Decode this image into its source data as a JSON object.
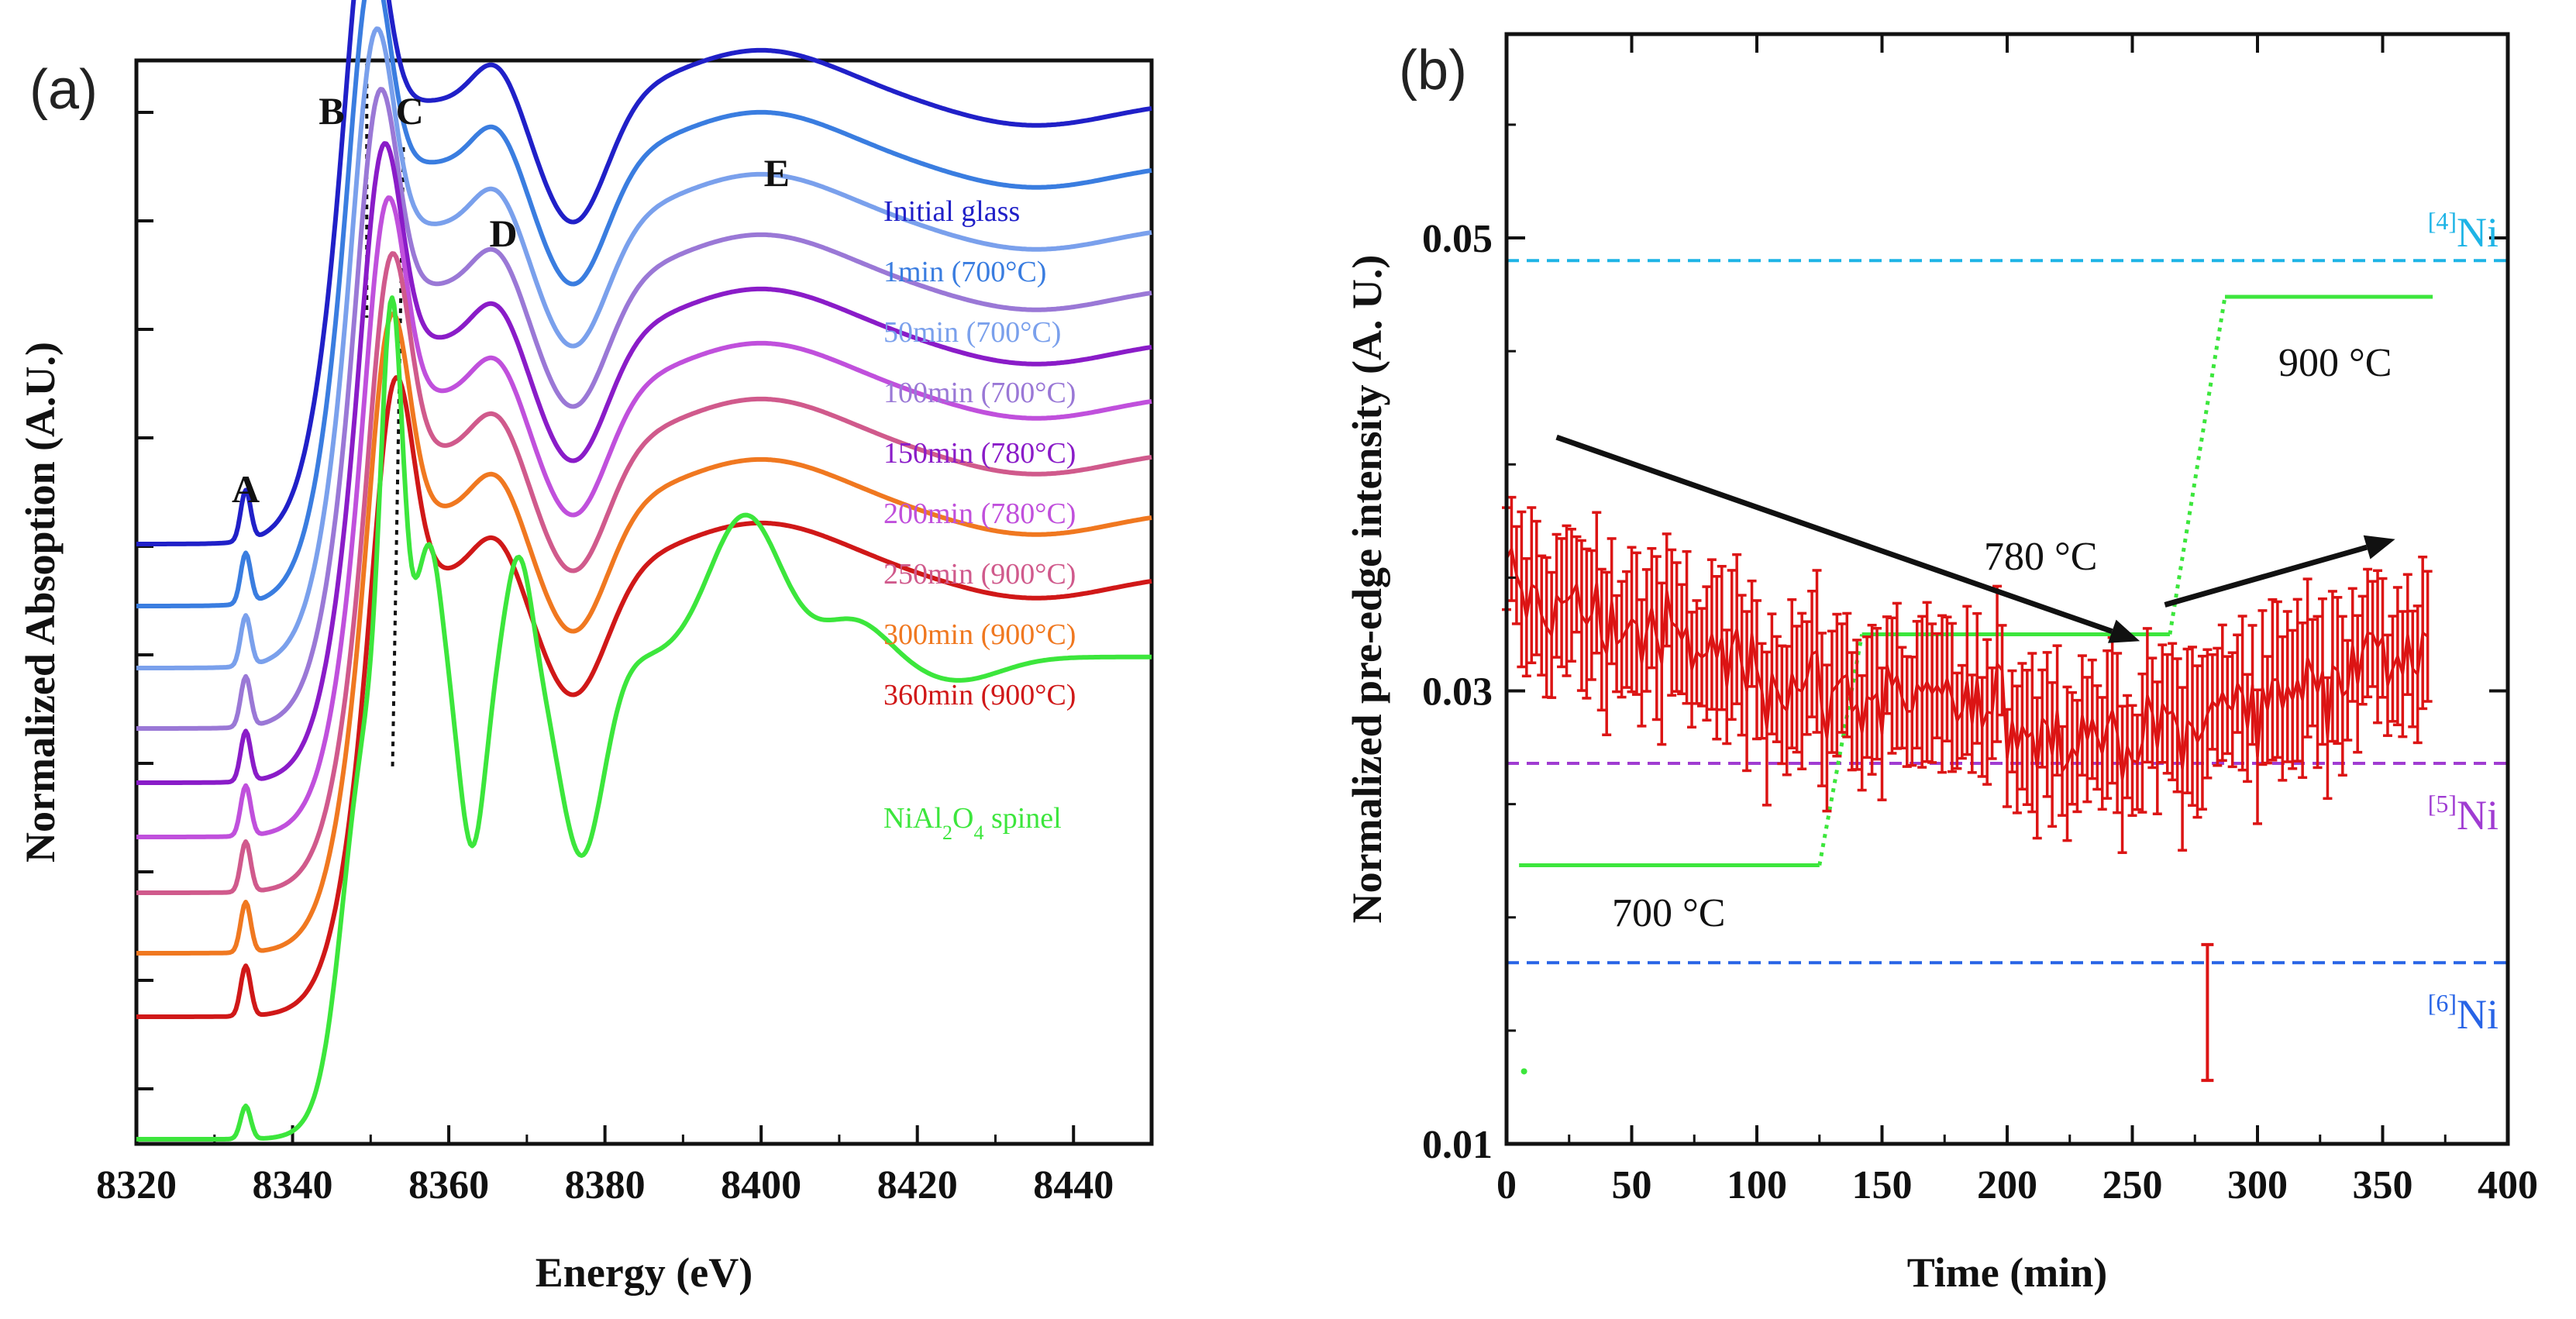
{
  "chart_data": [
    {
      "panel": "(a)",
      "type": "line",
      "xlabel": "Energy (eV)",
      "ylabel": "Normalized Absoption (A.U.)",
      "xlim": [
        8320,
        8450
      ],
      "x_ticks": [
        8320,
        8340,
        8360,
        8380,
        8400,
        8420,
        8440
      ],
      "peak_labels": [
        {
          "label": "A",
          "x": 8334
        },
        {
          "label": "B",
          "x": 8345
        },
        {
          "label": "C",
          "x": 8355
        },
        {
          "label": "D",
          "x": 8367
        },
        {
          "label": "E",
          "x": 8402
        }
      ],
      "guide_lines_x": [
        8349.5,
        8353
      ],
      "y_unit_spacing": 0.3,
      "series": [
        {
          "name": "Initial glass",
          "color": "#2020c8",
          "offset": 7.6,
          "peak_x": 8349.5,
          "spinel": false
        },
        {
          "name": "1min (700°C)",
          "color": "#3a7de0",
          "offset": 7.0,
          "peak_x": 8350,
          "spinel": false
        },
        {
          "name": "50min (700°C)",
          "color": "#7aa0ec",
          "offset": 6.4,
          "peak_x": 8350.5,
          "spinel": false
        },
        {
          "name": "100min (700°C)",
          "color": "#9a78d6",
          "offset": 5.8,
          "peak_x": 8351,
          "spinel": false
        },
        {
          "name": "150min (780°C)",
          "color": "#8a1cc8",
          "offset": 5.2,
          "peak_x": 8351.5,
          "spinel": false
        },
        {
          "name": "200min (780°C)",
          "color": "#c050dc",
          "offset": 4.6,
          "peak_x": 8352,
          "spinel": false
        },
        {
          "name": "250min (900°C)",
          "color": "#d05a8c",
          "offset": 4.0,
          "peak_x": 8352.5,
          "spinel": false
        },
        {
          "name": "300min (900°C)",
          "color": "#f07820",
          "offset": 3.4,
          "peak_x": 8352.5,
          "spinel": false
        },
        {
          "name": "360min (900°C)",
          "color": "#d01818",
          "offset": 2.8,
          "peak_x": 8353,
          "spinel": false
        },
        {
          "name": "NiAl2O4 spinel",
          "color": "#3ce63c",
          "offset": 1.5,
          "peak_x": 8353,
          "spinel": true
        }
      ]
    },
    {
      "panel": "(b)",
      "type": "scatter",
      "xlabel": "Time (min)",
      "ylabel": "Normalized pre-edge intensity (A. U.)",
      "xlim": [
        0,
        400
      ],
      "ylim": [
        0.01,
        0.059
      ],
      "x_ticks": [
        0,
        50,
        100,
        150,
        200,
        250,
        300,
        350,
        400
      ],
      "y_ticks": [
        "0.01",
        "0.03",
        "0.05"
      ],
      "y_tick_values": [
        0.01,
        0.03,
        0.05
      ],
      "reference_lines": [
        {
          "label": "[4]Ni",
          "sup": "[4]",
          "base": "Ni",
          "y": 0.049,
          "color": "#1eb4e6"
        },
        {
          "label": "[5]Ni",
          "sup": "[5]",
          "base": "Ni",
          "y": 0.0268,
          "color": "#a03cd2"
        },
        {
          "label": "[6]Ni",
          "sup": "[6]",
          "base": "Ni",
          "y": 0.018,
          "color": "#2864e6"
        }
      ],
      "temperature_profile": {
        "color": "#3ce63c",
        "segments": [
          {
            "label": "700 °C",
            "x": [
              5,
              125
            ],
            "y": 0.0223
          },
          {
            "label": "780 °C",
            "x": [
              142,
              265
            ],
            "y": 0.0325
          },
          {
            "label": "900 °C",
            "x": [
              287,
              370
            ],
            "y": 0.0474
          }
        ],
        "ramps": [
          {
            "x": [
              125,
              142
            ],
            "y": [
              0.0223,
              0.0325
            ]
          },
          {
            "x": [
              265,
              287
            ],
            "y": [
              0.0325,
              0.0474
            ]
          }
        ],
        "stray_point": {
          "x": 7,
          "y": 0.0132
        }
      },
      "trend_arrows": [
        {
          "from": [
            20,
            0.0412
          ],
          "to": [
            253,
            0.0322
          ]
        },
        {
          "from": [
            263,
            0.0338
          ],
          "to": [
            355,
            0.0367
          ]
        }
      ],
      "data": {
        "color": "#dc1414",
        "x_range": [
          0,
          368
        ],
        "n_points": 185,
        "mean_segments": [
          {
            "x": [
              0,
              130
            ],
            "y": [
              0.0345,
              0.03
            ]
          },
          {
            "x": [
              130,
              255
            ],
            "y": [
              0.03,
              0.0278
            ]
          },
          {
            "x": [
              255,
              368
            ],
            "y": [
              0.0278,
              0.0325
            ]
          }
        ],
        "noise_sd": 0.0019,
        "error_half_width": 0.0028,
        "outlier": {
          "x": 280,
          "y": 0.0158
        }
      }
    }
  ]
}
